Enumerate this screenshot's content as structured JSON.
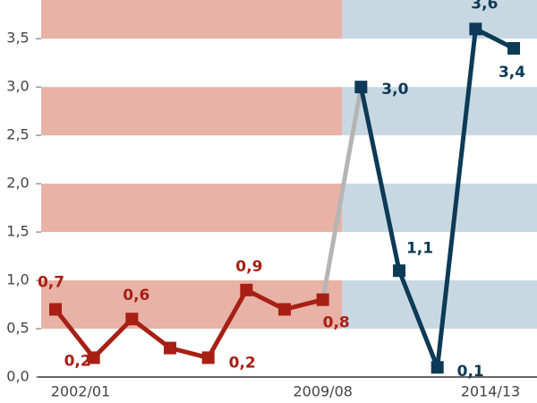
{
  "chart_data": {
    "type": "line",
    "categories": [
      "2002/01",
      null,
      null,
      null,
      null,
      null,
      null,
      "2009/08",
      null,
      null,
      null,
      null,
      "2014/13"
    ],
    "series": [
      {
        "color": "#a81f14",
        "values": [
          0.7,
          0.2,
          0.6,
          0.3,
          0.2,
          0.9,
          0.7,
          0.8,
          null,
          null,
          null,
          null,
          null
        ],
        "value_labels": [
          "0,7",
          "0,2",
          "0,6",
          null,
          "0,2",
          "0,9",
          null,
          "0,8",
          null,
          null,
          null,
          null,
          null
        ]
      },
      {
        "color": "#0d3a56",
        "values": [
          null,
          null,
          null,
          null,
          null,
          null,
          null,
          null,
          3.0,
          1.1,
          0.1,
          3.6,
          3.4
        ],
        "value_labels": [
          null,
          null,
          null,
          null,
          null,
          null,
          null,
          null,
          "3,0",
          "1,1",
          "0,1",
          "3,6",
          "3,4"
        ]
      }
    ],
    "connector_color": "#b5b5b5",
    "band_colors": [
      "#e8b2a6",
      "#c8d8e3"
    ],
    "ylim": [
      0,
      3.9
    ],
    "yticks": [
      {
        "value": 0,
        "label": "0,0"
      },
      {
        "value": 0.5,
        "label": "0,5"
      },
      {
        "value": 1,
        "label": "1,0"
      },
      {
        "value": 1.5,
        "label": "1,5"
      },
      {
        "value": 2,
        "label": "2,0"
      },
      {
        "value": 2.5,
        "label": "2,5"
      },
      {
        "value": 3,
        "label": "3,0"
      },
      {
        "value": 3.5,
        "label": "3,5"
      }
    ]
  }
}
